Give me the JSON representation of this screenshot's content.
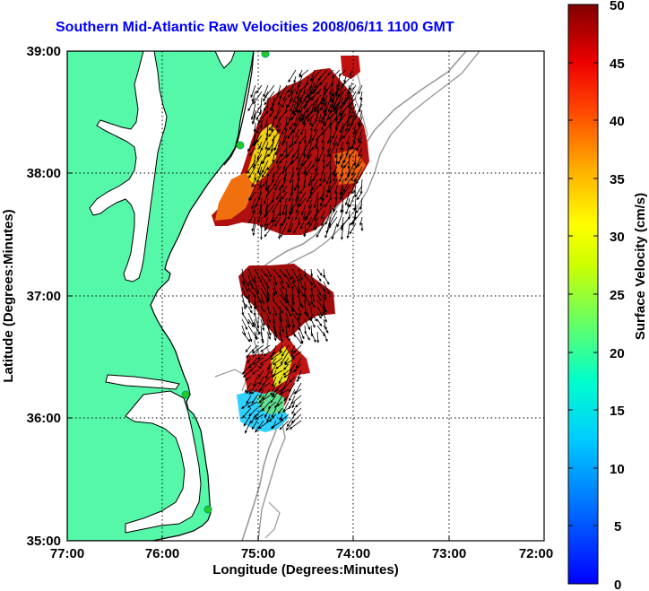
{
  "title": "Southern Mid-Atlantic Raw Velocities 2008/06/11 1100 GMT",
  "xaxis": {
    "label": "Longitude (Degrees:Minutes)",
    "ticks": [
      "77:00",
      "76:00",
      "75:00",
      "74:00",
      "73:00",
      "72:00"
    ]
  },
  "yaxis": {
    "label": "Latitude (Degrees:Minutes)",
    "ticks": [
      "39:00",
      "38:00",
      "37:00",
      "36:00",
      "35:00"
    ]
  },
  "colorbar": {
    "label": "Surface Velocity (cm/s)",
    "ticks": [
      "50",
      "45",
      "40",
      "35",
      "30",
      "25",
      "20",
      "15",
      "10",
      "5",
      "0"
    ],
    "range": [
      0,
      50
    ],
    "colormap": "jet"
  },
  "colors": {
    "title": "#0000ff",
    "land": "#55f7a9",
    "coastline": "#000000",
    "bathymetry": "#999999",
    "station": "#22cc22",
    "grid": "#000000"
  },
  "map": {
    "lon_range": [
      -77,
      -72
    ],
    "lat_range": [
      35,
      39
    ]
  }
}
